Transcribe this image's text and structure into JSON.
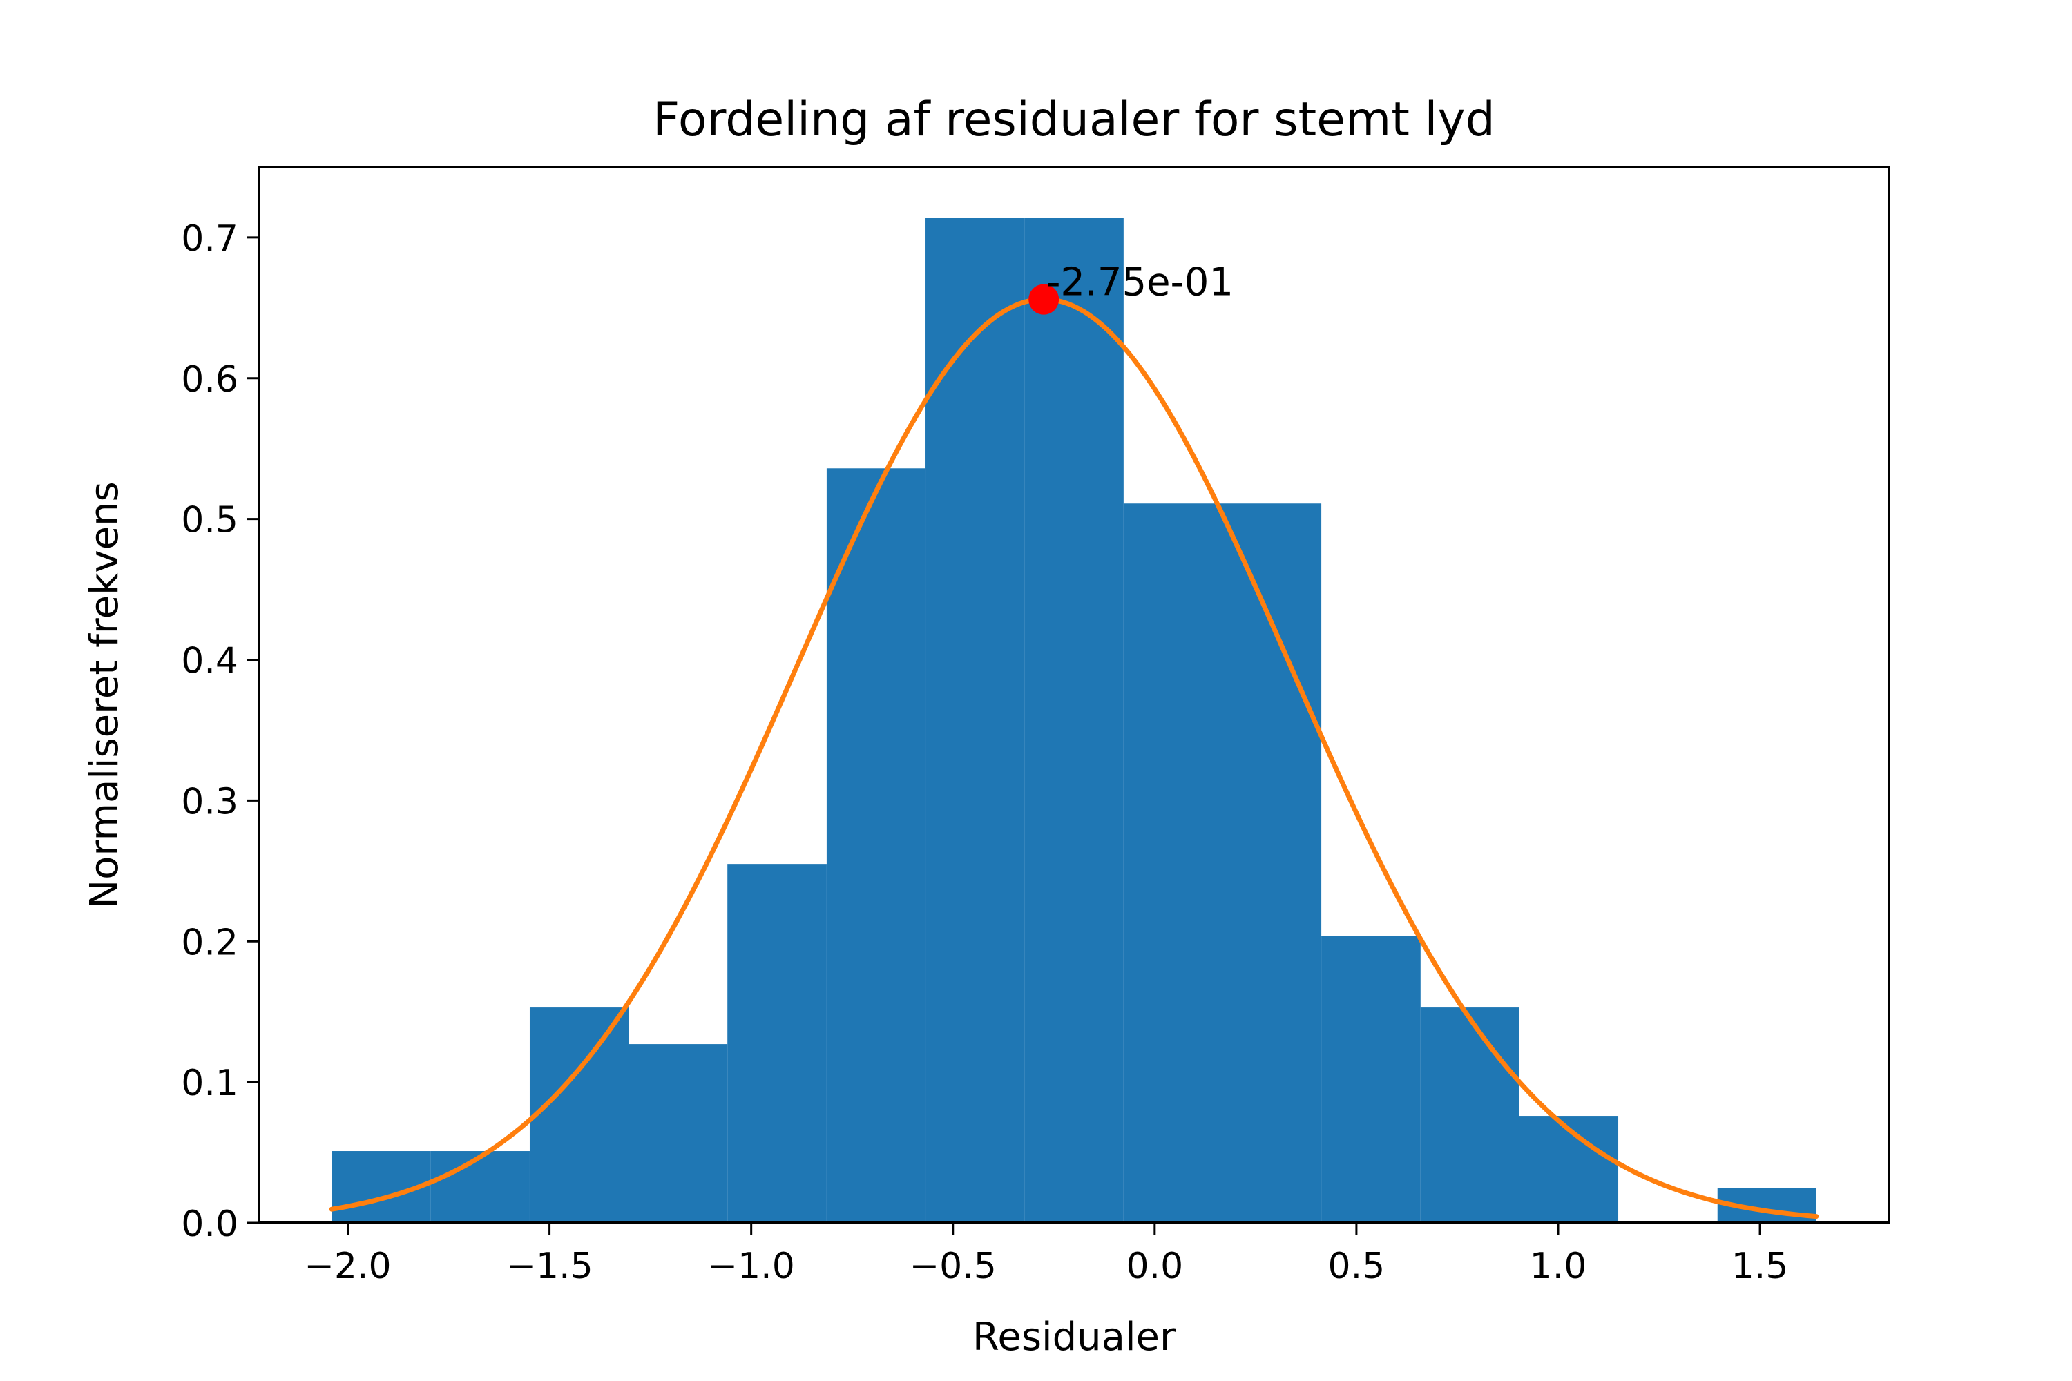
{
  "chart_data": {
    "type": "bar",
    "title": "Fordeling af residualer for stemt lyd",
    "xlabel": "Residualer",
    "ylabel": "Normaliseret frekvens",
    "xlim": [
      -2.22,
      1.82
    ],
    "ylim": [
      0.0,
      0.75
    ],
    "xticks": [
      -2.0,
      -1.5,
      -1.0,
      -0.5,
      0.0,
      0.5,
      1.0,
      1.5
    ],
    "xtick_labels": [
      "−2.0",
      "−1.5",
      "−1.0",
      "−0.5",
      "0.0",
      "0.5",
      "1.0",
      "1.5"
    ],
    "yticks": [
      0.0,
      0.1,
      0.2,
      0.3,
      0.4,
      0.5,
      0.6,
      0.7
    ],
    "ytick_labels": [
      "0.0",
      "0.1",
      "0.2",
      "0.3",
      "0.4",
      "0.5",
      "0.6",
      "0.7"
    ],
    "grid": false,
    "bin_edges": [
      -2.04,
      -1.795,
      -1.549,
      -1.304,
      -1.059,
      -0.813,
      -0.568,
      -0.323,
      -0.077,
      0.168,
      0.413,
      0.659,
      0.904,
      1.149,
      1.395,
      1.64
    ],
    "values": [
      0.051,
      0.051,
      0.153,
      0.127,
      0.255,
      0.536,
      0.714,
      0.714,
      0.511,
      0.511,
      0.204,
      0.153,
      0.076,
      0.0,
      0.025
    ],
    "bar_color": "#1f77b4",
    "fit_curve": {
      "type": "normal_pdf",
      "mean": -0.275,
      "std": 0.608,
      "x_range": [
        -2.04,
        1.64
      ],
      "color": "#ff7f0e"
    },
    "peak_marker": {
      "x": -0.275,
      "y": 0.656,
      "color": "#ff0000",
      "label": "-2.75e-01"
    }
  }
}
